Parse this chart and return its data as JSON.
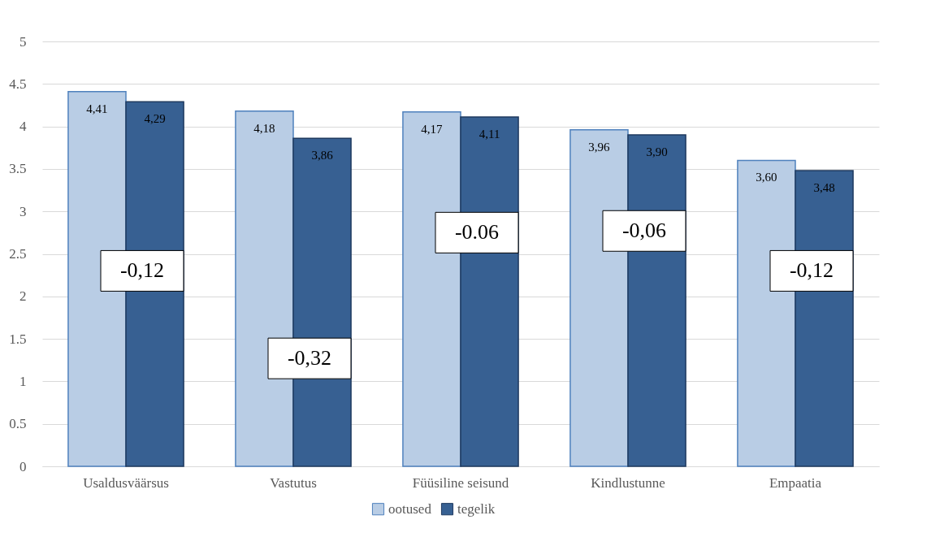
{
  "chart_data": {
    "type": "bar",
    "categories": [
      "Usaldusväärsus",
      "Vastutus",
      "Füüsiline seisund",
      "Kindlustunne",
      "Empaatia"
    ],
    "series": [
      {
        "name": "ootused",
        "color": "#b9cde5",
        "values": [
          4.41,
          4.18,
          4.17,
          3.96,
          3.6
        ],
        "value_labels": [
          "4,41",
          "4,18",
          "4,17",
          "3,96",
          "3,60"
        ]
      },
      {
        "name": "tegelik",
        "color": "#376092",
        "values": [
          4.29,
          3.86,
          4.11,
          3.9,
          3.48
        ],
        "value_labels": [
          "4,29",
          "3,86",
          "4,11",
          "3,90",
          "3,48"
        ]
      }
    ],
    "ylim": [
      0,
      5
    ],
    "yticks": [
      0,
      0.5,
      1,
      1.5,
      2,
      2.5,
      3,
      3.5,
      4,
      4.5,
      5
    ],
    "annotations": [
      {
        "text": "-0,12",
        "x": "Usaldusväärsus",
        "y": 2.3
      },
      {
        "text": "-0,32",
        "x": "Vastutus",
        "y": 1.27
      },
      {
        "text": "-0.06",
        "x": "Füüsiline seisund",
        "y": 2.75
      },
      {
        "text": "-0,06",
        "x": "Kindlustunne",
        "y": 2.77
      },
      {
        "text": "-0,12",
        "x": "Empaatia",
        "y": 2.3
      }
    ],
    "grid": "y",
    "legend": "bottom"
  }
}
